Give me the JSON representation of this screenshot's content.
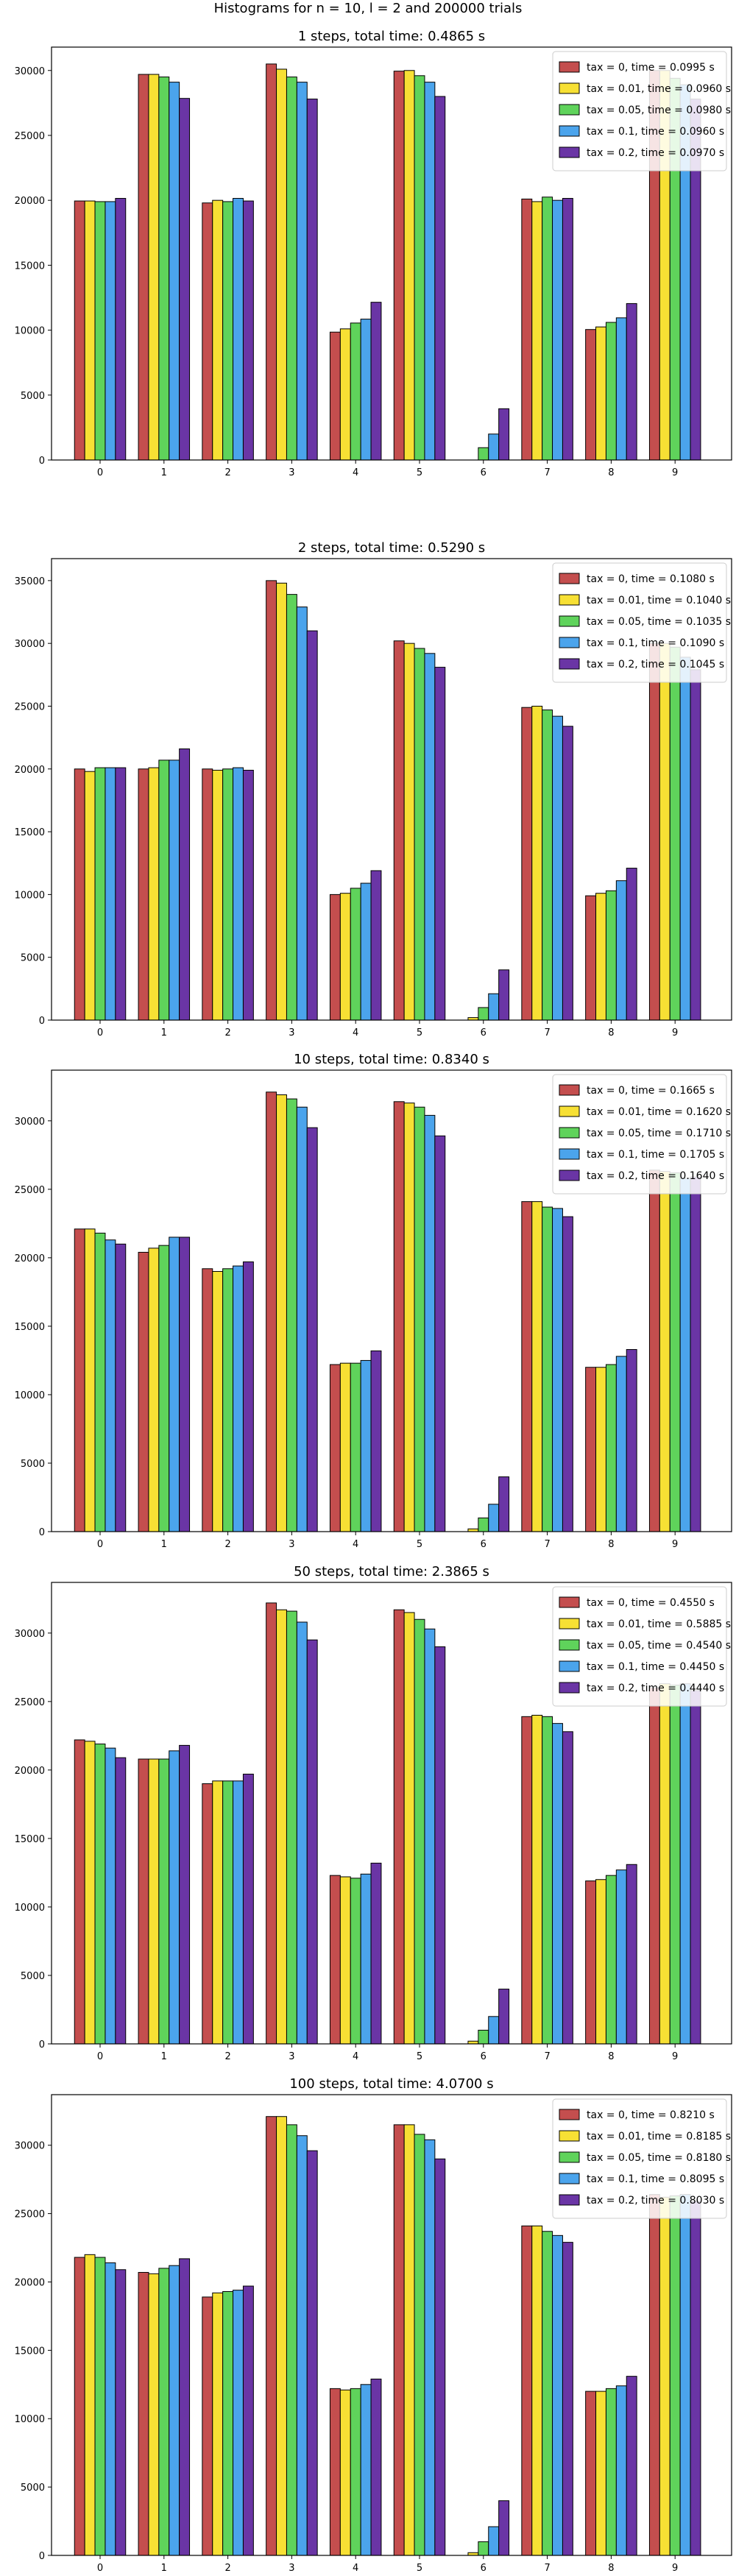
{
  "figure_title": "Histograms for n = 10, l = 2 and 200000 trials",
  "colors": [
    "#c44e4e",
    "#f7e034",
    "#5fd35b",
    "#4ba4ec",
    "#6a35a5"
  ],
  "chart_data": [
    {
      "type": "bar",
      "title": "1 steps, total time: 0.4865 s",
      "categories": [
        "0",
        "1",
        "2",
        "3",
        "4",
        "5",
        "6",
        "7",
        "8",
        "9"
      ],
      "ylim": [
        0,
        31800
      ],
      "yticks": [
        0,
        5000,
        10000,
        15000,
        20000,
        25000,
        30000
      ],
      "legend_position": "top-right",
      "series": [
        {
          "name": "tax = 0, time = 0.0995 s",
          "values": [
            19950,
            29700,
            19800,
            30500,
            9850,
            29950,
            0,
            20100,
            10050,
            30000
          ]
        },
        {
          "name": "tax = 0.01, time = 0.0960 s",
          "values": [
            19950,
            29700,
            20000,
            30100,
            10100,
            30000,
            0,
            19900,
            10250,
            30000
          ]
        },
        {
          "name": "tax = 0.05, time = 0.0980 s",
          "values": [
            19900,
            29500,
            19900,
            29500,
            10550,
            29600,
            950,
            20250,
            10600,
            29400
          ]
        },
        {
          "name": "tax = 0.1, time = 0.0960 s",
          "values": [
            19900,
            29100,
            20150,
            29100,
            10850,
            29100,
            2000,
            20000,
            10950,
            28900
          ]
        },
        {
          "name": "tax = 0.2, time = 0.0970 s",
          "values": [
            20150,
            27850,
            19950,
            27800,
            12150,
            28000,
            3950,
            20150,
            12050,
            27800
          ]
        }
      ]
    },
    {
      "type": "bar",
      "title": "2 steps, total time: 0.5290 s",
      "categories": [
        "0",
        "1",
        "2",
        "3",
        "4",
        "5",
        "6",
        "7",
        "8",
        "9"
      ],
      "ylim": [
        0,
        36750
      ],
      "yticks": [
        0,
        5000,
        10000,
        15000,
        20000,
        25000,
        30000,
        35000
      ],
      "legend_position": "top-right",
      "series": [
        {
          "name": "tax = 0, time = 0.1080 s",
          "values": [
            20000,
            20000,
            20000,
            35000,
            10000,
            30200,
            0,
            24900,
            9900,
            30000
          ]
        },
        {
          "name": "tax = 0.01, time = 0.1040 s",
          "values": [
            19800,
            20100,
            19900,
            34800,
            10100,
            30000,
            200,
            25000,
            10100,
            30000
          ]
        },
        {
          "name": "tax = 0.05, time = 0.1035 s",
          "values": [
            20100,
            20700,
            20000,
            33900,
            10500,
            29600,
            1000,
            24700,
            10300,
            29700
          ]
        },
        {
          "name": "tax = 0.1, time = 0.1090 s",
          "values": [
            20100,
            20700,
            20100,
            32900,
            10900,
            29200,
            2100,
            24200,
            11100,
            28900
          ]
        },
        {
          "name": "tax = 0.2, time = 0.1045 s",
          "values": [
            20100,
            21600,
            19900,
            31000,
            11900,
            28100,
            4000,
            23400,
            12100,
            27900
          ]
        }
      ]
    },
    {
      "type": "bar",
      "title": "10 steps, total time: 0.8340 s",
      "categories": [
        "0",
        "1",
        "2",
        "3",
        "4",
        "5",
        "6",
        "7",
        "8",
        "9"
      ],
      "ylim": [
        0,
        33700
      ],
      "yticks": [
        0,
        5000,
        10000,
        15000,
        20000,
        25000,
        30000
      ],
      "legend_position": "top-right",
      "series": [
        {
          "name": "tax = 0, time = 0.1665 s",
          "values": [
            22100,
            20400,
            19200,
            32100,
            12200,
            31400,
            0,
            24100,
            12000,
            26400
          ]
        },
        {
          "name": "tax = 0.01, time = 0.1620 s",
          "values": [
            22100,
            20700,
            19000,
            31900,
            12300,
            31300,
            200,
            24100,
            12000,
            26300
          ]
        },
        {
          "name": "tax = 0.05, time = 0.1710 s",
          "values": [
            21800,
            20900,
            19200,
            31600,
            12300,
            31000,
            1000,
            23700,
            12200,
            26200
          ]
        },
        {
          "name": "tax = 0.1, time = 0.1705 s",
          "values": [
            21300,
            21500,
            19400,
            31000,
            12500,
            30400,
            2000,
            23600,
            12800,
            25800
          ]
        },
        {
          "name": "tax = 0.2, time = 0.1640 s",
          "values": [
            21000,
            21500,
            19700,
            29500,
            13200,
            28900,
            4000,
            23000,
            13300,
            25900
          ]
        }
      ]
    },
    {
      "type": "bar",
      "title": "50 steps, total time: 2.3865 s",
      "categories": [
        "0",
        "1",
        "2",
        "3",
        "4",
        "5",
        "6",
        "7",
        "8",
        "9"
      ],
      "ylim": [
        0,
        33700
      ],
      "yticks": [
        0,
        5000,
        10000,
        15000,
        20000,
        25000,
        30000
      ],
      "legend_position": "top-right",
      "series": [
        {
          "name": "tax = 0, time = 0.4550 s",
          "values": [
            22200,
            20800,
            19000,
            32200,
            12300,
            31700,
            0,
            23900,
            11900,
            26000
          ]
        },
        {
          "name": "tax = 0.01, time = 0.5885 s",
          "values": [
            22100,
            20800,
            19200,
            31700,
            12200,
            31500,
            200,
            24000,
            12000,
            26300
          ]
        },
        {
          "name": "tax = 0.05, time = 0.4540 s",
          "values": [
            21900,
            20800,
            19200,
            31600,
            12100,
            31000,
            1000,
            23900,
            12300,
            26200
          ]
        },
        {
          "name": "tax = 0.1, time = 0.4450 s",
          "values": [
            21600,
            21400,
            19200,
            30800,
            12400,
            30300,
            2000,
            23400,
            12700,
            26300
          ]
        },
        {
          "name": "tax = 0.2, time = 0.4440 s",
          "values": [
            20900,
            21800,
            19700,
            29500,
            13200,
            29000,
            4000,
            22800,
            13100,
            25800
          ]
        }
      ]
    },
    {
      "type": "bar",
      "title": "100 steps, total time: 4.0700 s",
      "categories": [
        "0",
        "1",
        "2",
        "3",
        "4",
        "5",
        "6",
        "7",
        "8",
        "9"
      ],
      "ylim": [
        0,
        33700
      ],
      "yticks": [
        0,
        5000,
        10000,
        15000,
        20000,
        25000,
        30000
      ],
      "legend_position": "top-right",
      "series": [
        {
          "name": "tax = 0, time = 0.8210 s",
          "values": [
            21800,
            20700,
            18900,
            32100,
            12200,
            31500,
            0,
            24100,
            12000,
            26400
          ]
        },
        {
          "name": "tax = 0.01, time = 0.8185 s",
          "values": [
            22000,
            20600,
            19200,
            32100,
            12100,
            31500,
            200,
            24100,
            12000,
            26200
          ]
        },
        {
          "name": "tax = 0.05, time = 0.8180 s",
          "values": [
            21800,
            21000,
            19300,
            31500,
            12200,
            30800,
            1000,
            23700,
            12200,
            26300
          ]
        },
        {
          "name": "tax = 0.1, time = 0.8095 s",
          "values": [
            21400,
            21200,
            19400,
            30700,
            12500,
            30400,
            2100,
            23400,
            12400,
            26400
          ]
        },
        {
          "name": "tax = 0.2, time = 0.8030 s",
          "values": [
            20900,
            21700,
            19700,
            29600,
            12900,
            29000,
            4000,
            22900,
            13100,
            25900
          ]
        }
      ]
    }
  ]
}
